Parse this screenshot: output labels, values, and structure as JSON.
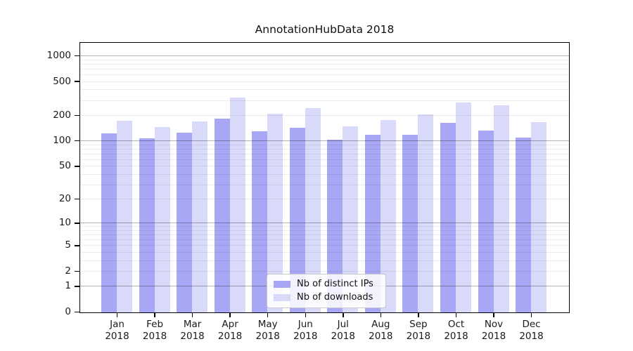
{
  "title": "AnnotationHubData 2018",
  "chart_data": {
    "type": "bar",
    "title": "AnnotationHubData 2018",
    "categories": [
      "Jan",
      "Feb",
      "Mar",
      "Apr",
      "May",
      "Jun",
      "Jul",
      "Aug",
      "Sep",
      "Oct",
      "Nov",
      "Dec"
    ],
    "year_label": "2018",
    "series": [
      {
        "name": "Nb of distinct IPs",
        "color": "#a7a7f5",
        "values": [
          124,
          108,
          127,
          185,
          131,
          143,
          104,
          120,
          120,
          164,
          133,
          110
        ]
      },
      {
        "name": "Nb of downloads",
        "color": "#d9d9fa",
        "values": [
          173,
          147,
          171,
          327,
          213,
          247,
          150,
          178,
          209,
          286,
          266,
          169
        ]
      }
    ],
    "y_ticks": [
      1000,
      500,
      200,
      100,
      50,
      20,
      10,
      5,
      2,
      1,
      0
    ],
    "y_scale": "log1p",
    "ylim": [
      0,
      1200
    ],
    "xlabel": "",
    "ylabel": "",
    "grid": "minor log gridlines, darker decade lines (1, 10, 100, 1000)",
    "legend_position": "lower center",
    "axis_color": "#000000",
    "background_color": "#ffffff"
  }
}
